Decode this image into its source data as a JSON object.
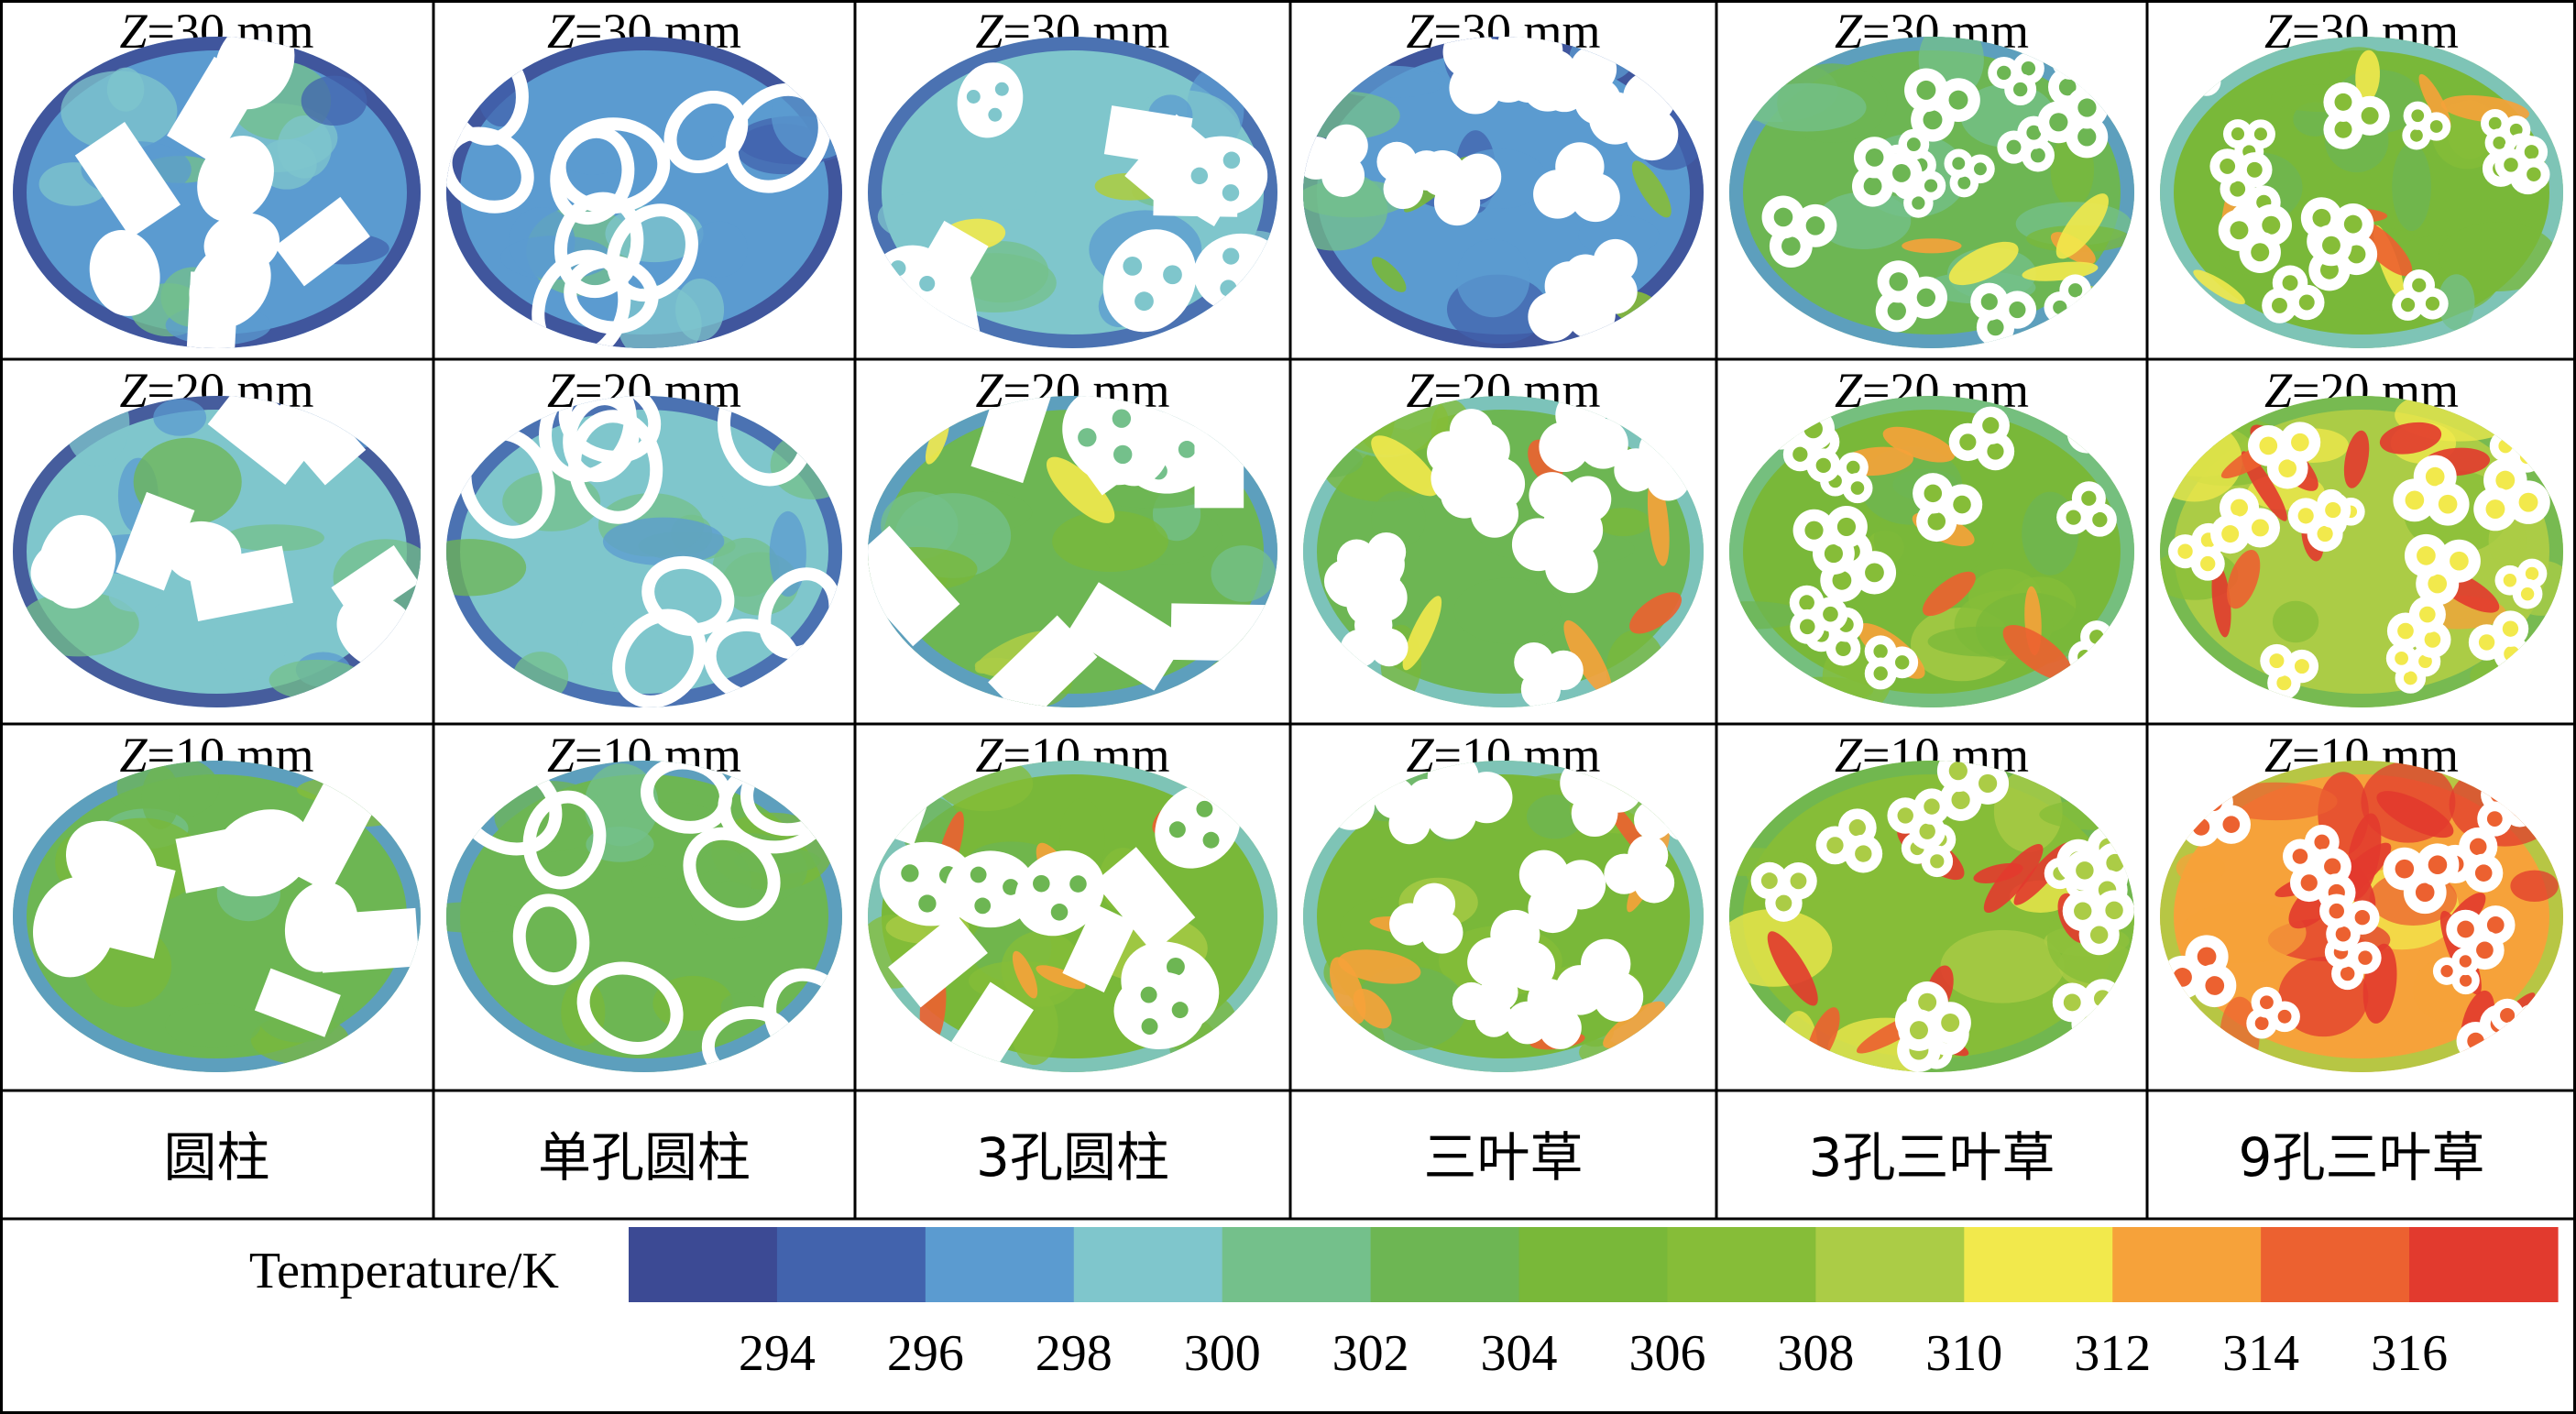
{
  "z_label_prefix": "Z",
  "z_levels": [
    "=30 mm",
    "=20 mm",
    "=10 mm"
  ],
  "categories": [
    "圆柱",
    "单孔圆柱",
    "3孔圆柱",
    "三叶草",
    "3孔三叶草",
    "9孔三叶草"
  ],
  "colorbar": {
    "title": "Temperature/K",
    "min": 293,
    "max": 317,
    "ticks": [
      "294",
      "296",
      "298",
      "300",
      "302",
      "304",
      "306",
      "308",
      "310",
      "312",
      "314",
      "316"
    ],
    "colors": [
      "#3c4a94",
      "#4263ad",
      "#5b9bd0",
      "#7fc6cc",
      "#74c08b",
      "#6db653",
      "#79b839",
      "#86bd38",
      "#abcc46",
      "#f2e94c",
      "#f6a23a",
      "#ec6130",
      "#e23a2e"
    ]
  },
  "temperature_fields": [
    {
      "row": "=30 mm",
      "values_K": [
        298.5,
        298.5,
        300.0,
        298.5,
        303.0,
        305.0
      ]
    },
    {
      "row": "=20 mm",
      "values_K": [
        299.5,
        300.0,
        302.5,
        304.0,
        305.5,
        309.0
      ]
    },
    {
      "row": "=10 mm",
      "values_K": [
        303.0,
        302.5,
        305.0,
        304.5,
        307.5,
        313.0
      ]
    }
  ]
}
